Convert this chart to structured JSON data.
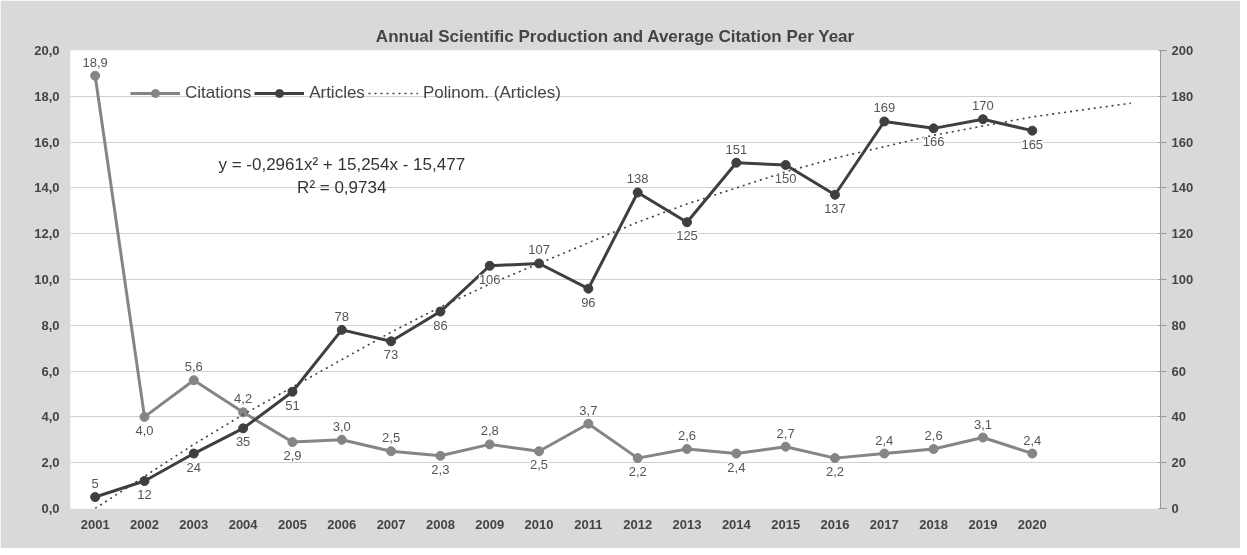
{
  "chart_data": {
    "type": "line",
    "title": "Annual Scientific Production and Average Citation Per Year",
    "x": [
      2001,
      2002,
      2003,
      2004,
      2005,
      2006,
      2007,
      2008,
      2009,
      2010,
      2011,
      2012,
      2013,
      2014,
      2015,
      2016,
      2017,
      2018,
      2019,
      2020
    ],
    "xlim": [
      2000.5,
      2022.6
    ],
    "xticks": [
      2001,
      2002,
      2003,
      2004,
      2005,
      2006,
      2007,
      2008,
      2009,
      2010,
      2011,
      2012,
      2013,
      2014,
      2015,
      2016,
      2017,
      2018,
      2019,
      2020
    ],
    "ylim": [
      0,
      20
    ],
    "yticks": [
      {
        "value": 0,
        "label": "0,0"
      },
      {
        "value": 2,
        "label": "2,0"
      },
      {
        "value": 4,
        "label": "4,0"
      },
      {
        "value": 6,
        "label": "6,0"
      },
      {
        "value": 8,
        "label": "8,0"
      },
      {
        "value": 10,
        "label": "10,0"
      },
      {
        "value": 12,
        "label": "12,0"
      },
      {
        "value": 14,
        "label": "14,0"
      },
      {
        "value": 16,
        "label": "16,0"
      },
      {
        "value": 18,
        "label": "18,0"
      },
      {
        "value": 20,
        "label": "20,0"
      }
    ],
    "y2lim": [
      0,
      200
    ],
    "y2ticks": [
      0,
      20,
      40,
      60,
      80,
      100,
      120,
      140,
      160,
      180,
      200
    ],
    "grid": "y",
    "legend": "top left",
    "marker": "circle",
    "series": [
      {
        "name": "Citations",
        "color": "#858585",
        "values": [
          18.9,
          4.0,
          5.6,
          4.2,
          2.9,
          3.0,
          2.5,
          2.3,
          2.8,
          2.5,
          3.7,
          2.2,
          2.6,
          2.4,
          2.7,
          2.2,
          2.4,
          2.6,
          3.1,
          2.4
        ],
        "value_labels": [
          "18,9",
          "4,0",
          "5,6",
          "4,2",
          "2,9",
          "3,0",
          "2,5",
          "2,3",
          "2,8",
          "2,5",
          "3,7",
          "2,2",
          "2,6",
          "2,4",
          "2,7",
          "2,2",
          "2,4",
          "2,6",
          "3,1",
          "2,4"
        ]
      },
      {
        "name": "Articles",
        "color": "#3f3f3f",
        "axis": "y2",
        "values": [
          5,
          12,
          24,
          35,
          51,
          78,
          73,
          86,
          106,
          107,
          96,
          138,
          125,
          151,
          150,
          137,
          169,
          166,
          170,
          165
        ],
        "value_labels": [
          "5",
          "12",
          "24",
          "35",
          "51",
          "78",
          "73",
          "86",
          "106",
          "107",
          "96",
          "138",
          "125",
          "151",
          "150",
          "137",
          "169",
          "166",
          "170",
          "165"
        ]
      },
      {
        "name": "Polinom. (Articles)",
        "color": "#3f3f3f",
        "axis": "y2",
        "marker": "none",
        "line_style": "dotted",
        "x": [
          2001,
          2002,
          2003,
          2004,
          2005,
          2006,
          2007,
          2008,
          2009,
          2010,
          2011,
          2012,
          2013,
          2014,
          2015,
          2016,
          2017,
          2018,
          2019,
          2020,
          2021,
          2022
        ],
        "values": [
          0,
          14,
          28,
          41,
          53,
          65,
          77,
          88,
          98,
          107,
          116,
          125,
          133,
          140,
          147,
          153,
          158,
          163,
          167,
          171,
          174,
          177
        ]
      }
    ],
    "annotations": [
      "y = -0,2961x² + 15,254x - 15,477\nR² = 0,9734"
    ]
  }
}
